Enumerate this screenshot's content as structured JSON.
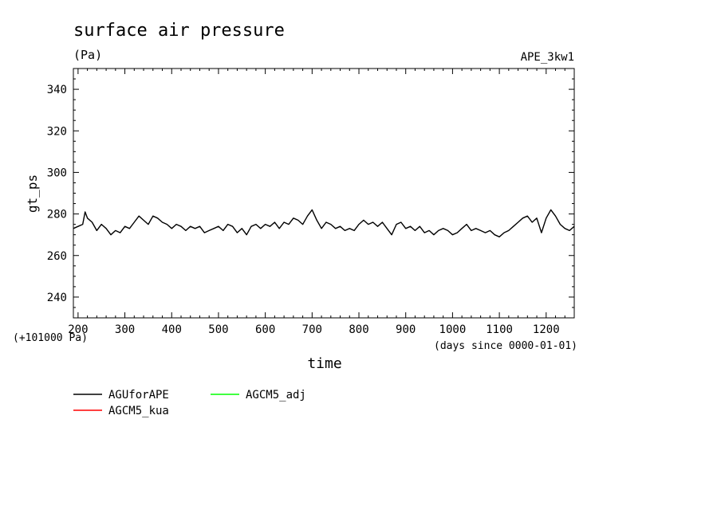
{
  "chart_data": {
    "type": "line",
    "title": "surface air pressure",
    "units": "(Pa)",
    "experiment": "APE_3kw1",
    "ylabel": "gt_ps",
    "xlabel": "time",
    "x_units_note": "(days since 0000-01-01)",
    "y_offset_note": "(+101000 Pa)",
    "xlim": [
      190,
      1260
    ],
    "ylim": [
      230,
      350
    ],
    "xticks": [
      200,
      300,
      400,
      500,
      600,
      700,
      800,
      900,
      1000,
      1100,
      1200
    ],
    "yticks": [
      240,
      260,
      280,
      300,
      320,
      340
    ],
    "legend": [
      {
        "name": "AGUforAPE",
        "color": "#000000"
      },
      {
        "name": "AGCM5_adj",
        "color": "#00ff00"
      },
      {
        "name": "AGCM5_kua",
        "color": "#ff0000"
      }
    ],
    "series": [
      {
        "name": "AGUforAPE",
        "color": "#000000",
        "x": [
          190,
          200,
          210,
          215,
          220,
          230,
          240,
          250,
          260,
          270,
          280,
          290,
          300,
          310,
          320,
          330,
          340,
          350,
          360,
          370,
          380,
          390,
          400,
          410,
          420,
          430,
          440,
          450,
          460,
          470,
          480,
          490,
          500,
          510,
          520,
          530,
          540,
          550,
          560,
          570,
          580,
          590,
          600,
          610,
          620,
          630,
          640,
          650,
          660,
          670,
          680,
          690,
          700,
          710,
          720,
          730,
          740,
          750,
          760,
          770,
          780,
          790,
          800,
          810,
          820,
          830,
          840,
          850,
          860,
          870,
          880,
          890,
          900,
          910,
          920,
          930,
          940,
          950,
          960,
          970,
          980,
          990,
          1000,
          1010,
          1020,
          1030,
          1040,
          1050,
          1060,
          1070,
          1080,
          1090,
          1100,
          1110,
          1120,
          1130,
          1140,
          1150,
          1160,
          1170,
          1180,
          1190,
          1200,
          1210,
          1220,
          1230,
          1240,
          1250,
          1260
        ],
        "values": [
          273,
          274,
          275,
          281,
          278,
          276,
          272,
          275,
          273,
          270,
          272,
          271,
          274,
          273,
          276,
          279,
          277,
          275,
          279,
          278,
          276,
          275,
          273,
          275,
          274,
          272,
          274,
          273,
          274,
          271,
          272,
          273,
          274,
          272,
          275,
          274,
          271,
          273,
          270,
          274,
          275,
          273,
          275,
          274,
          276,
          273,
          276,
          275,
          278,
          277,
          275,
          279,
          282,
          277,
          273,
          276,
          275,
          273,
          274,
          272,
          273,
          272,
          275,
          277,
          275,
          276,
          274,
          276,
          273,
          270,
          275,
          276,
          273,
          274,
          272,
          274,
          271,
          272,
          270,
          272,
          273,
          272,
          270,
          271,
          273,
          275,
          272,
          273,
          272,
          271,
          272,
          270,
          269,
          271,
          272,
          274,
          276,
          278,
          279,
          276,
          278,
          271,
          278,
          282,
          279,
          275,
          273,
          272,
          274
        ]
      }
    ]
  }
}
